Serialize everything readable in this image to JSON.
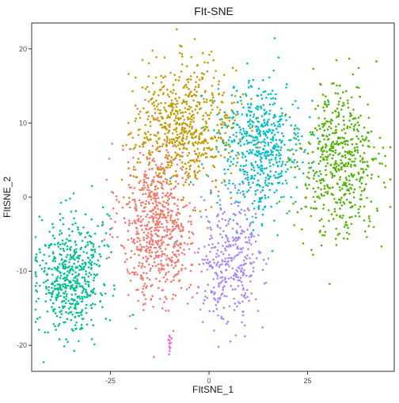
{
  "chart_data": {
    "type": "scatter",
    "title": "FIt-SNE",
    "xlabel": "FItSNE_1",
    "ylabel": "FItSNE_2",
    "xlim": [
      -45,
      47
    ],
    "ylim": [
      -23.5,
      23.5
    ],
    "x_ticks": [
      -25,
      0,
      25
    ],
    "y_ticks": [
      -20,
      -10,
      0,
      10,
      20
    ],
    "x_tick_labels": [
      "-25",
      "0",
      "25"
    ],
    "y_tick_labels": [
      "-20",
      "-10",
      "0",
      "10",
      "20"
    ],
    "grid": false,
    "legend": "none",
    "point_size": 1.3,
    "clusters": [
      {
        "color": "#F8766D",
        "center": [
          -13,
          -3.5
        ],
        "spread": [
          4.8,
          5.5
        ],
        "count": 700
      },
      {
        "color": "#C49A00",
        "center": [
          -6,
          9.5
        ],
        "spread": [
          6.5,
          4.2
        ],
        "count": 650
      },
      {
        "color": "#00BFC4",
        "center": [
          13,
          6.5
        ],
        "spread": [
          5.5,
          4.5
        ],
        "count": 550
      },
      {
        "color": "#53B400",
        "center": [
          33,
          4.5
        ],
        "spread": [
          5,
          5
        ],
        "count": 550
      },
      {
        "color": "#00C094",
        "center": [
          -35,
          -10.5
        ],
        "spread": [
          4.2,
          4
        ],
        "count": 550
      },
      {
        "color": "#A58AFF",
        "center": [
          5.5,
          -8.5
        ],
        "spread": [
          3.8,
          4.2
        ],
        "count": 350
      },
      {
        "color": "#FB61D7",
        "center": [
          -10,
          -20
        ],
        "spread": [
          0.3,
          0.8
        ],
        "count": 12
      }
    ]
  }
}
